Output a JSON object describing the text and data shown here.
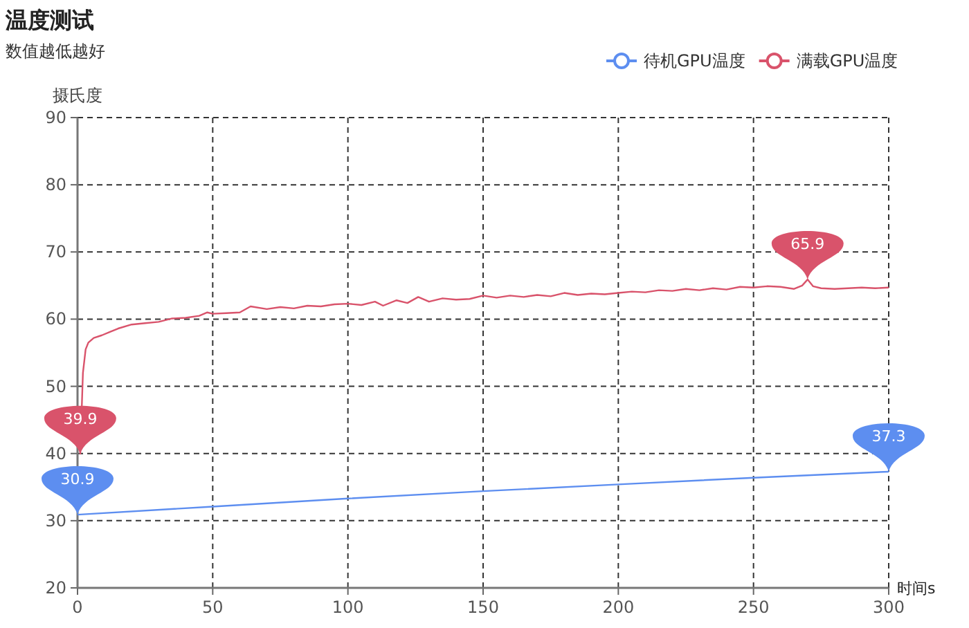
{
  "chart_data": {
    "type": "line",
    "title": "温度测试",
    "subtitle": "数值越低越好",
    "xlabel": "时间s",
    "ylabel": "摄氏度",
    "xlim": [
      0,
      300
    ],
    "xticks": [
      0,
      50,
      100,
      150,
      200,
      250,
      300
    ],
    "ylim": [
      20,
      90
    ],
    "yticks": [
      20,
      30,
      40,
      50,
      60,
      70,
      80,
      90
    ],
    "grid": true,
    "legend": "top right",
    "series": [
      {
        "name": "待机GPU温度",
        "color": "#5d8ef0",
        "x": [
          0,
          50,
          100,
          150,
          200,
          250,
          300
        ],
        "values": [
          30.9,
          32.1,
          33.3,
          34.4,
          35.4,
          36.4,
          37.3
        ]
      },
      {
        "name": "满载GPU温度",
        "color": "#d9536b",
        "x": [
          1,
          2,
          3,
          4,
          6,
          9,
          12,
          15,
          20,
          25,
          30,
          35,
          40,
          45,
          48,
          50,
          55,
          60,
          64,
          70,
          75,
          80,
          85,
          90,
          95,
          100,
          105,
          110,
          113,
          118,
          122,
          126,
          130,
          135,
          140,
          145,
          150,
          155,
          160,
          165,
          170,
          175,
          180,
          185,
          190,
          195,
          200,
          205,
          210,
          215,
          220,
          225,
          230,
          235,
          240,
          245,
          250,
          255,
          260,
          265,
          268,
          270,
          272,
          275,
          280,
          285,
          290,
          295,
          300
        ],
        "values": [
          39.9,
          52,
          55.5,
          56.5,
          57.2,
          57.6,
          58.1,
          58.6,
          59.2,
          59.4,
          59.6,
          60.1,
          60.2,
          60.5,
          61,
          60.8,
          60.9,
          61.0,
          61.9,
          61.5,
          61.8,
          61.6,
          62.0,
          61.9,
          62.2,
          62.3,
          62.1,
          62.6,
          62.0,
          62.8,
          62.4,
          63.3,
          62.6,
          63.1,
          62.9,
          63.0,
          63.5,
          63.2,
          63.5,
          63.3,
          63.6,
          63.4,
          63.9,
          63.6,
          63.8,
          63.7,
          63.9,
          64.1,
          64.0,
          64.3,
          64.2,
          64.5,
          64.3,
          64.6,
          64.4,
          64.8,
          64.7,
          64.9,
          64.8,
          64.5,
          65.0,
          65.9,
          64.9,
          64.6,
          64.5,
          64.6,
          64.7,
          64.6,
          64.7
        ]
      }
    ],
    "annotations": [
      {
        "text": "30.9",
        "x": 0,
        "y": 30.9
      },
      {
        "text": "37.3",
        "x": 300,
        "y": 37.3
      },
      {
        "text": "39.9",
        "x": 1,
        "y": 39.9
      },
      {
        "text": "65.9",
        "x": 270,
        "y": 65.9
      }
    ]
  }
}
